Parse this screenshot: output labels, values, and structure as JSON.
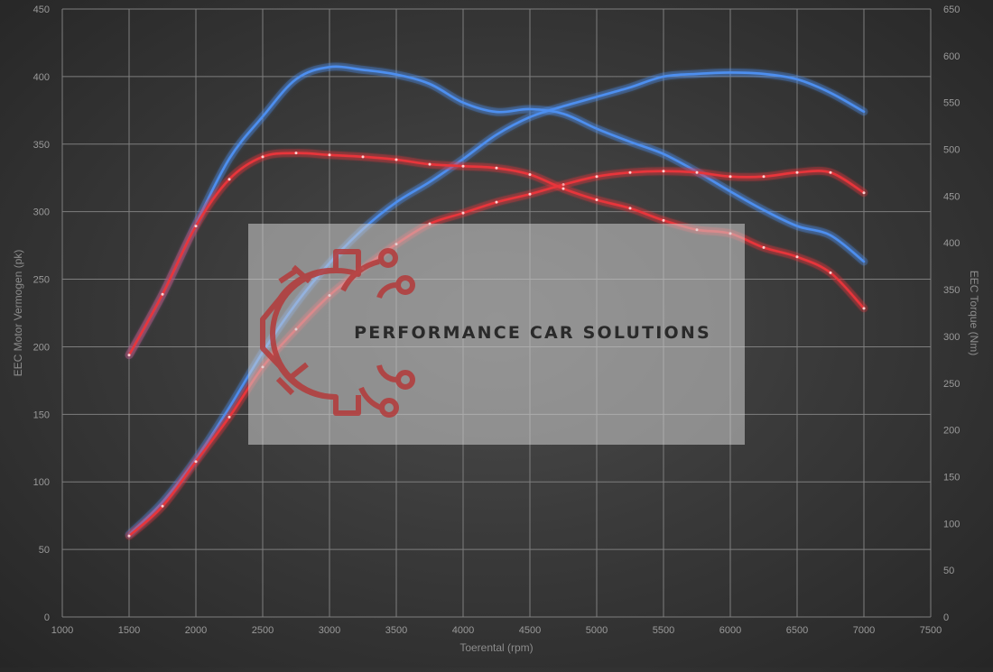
{
  "chart_data": {
    "type": "line",
    "title": "",
    "xlabel": "Toerental (rpm)",
    "ylabel_left": "EEC Motor Vermogen (pk)",
    "ylabel_right": "EEC Torque (Nm)",
    "xlim": [
      1000,
      7500
    ],
    "ylim_left": [
      0,
      450
    ],
    "ylim_right": [
      0,
      650
    ],
    "x_ticks": [
      "1000",
      "1500",
      "2000",
      "2500",
      "3000",
      "3500",
      "4000",
      "4500",
      "5000",
      "5500",
      "6000",
      "6500",
      "7000",
      "7500"
    ],
    "y_left_ticks": [
      "0",
      "50",
      "100",
      "150",
      "200",
      "250",
      "300",
      "350",
      "400",
      "450"
    ],
    "y_right_ticks": [
      "0",
      "50",
      "100",
      "150",
      "200",
      "250",
      "300",
      "350",
      "400",
      "450",
      "500",
      "550",
      "600",
      "650"
    ],
    "grid": true,
    "colors": {
      "tuned": "#4d8ff0",
      "stock": "#e8343a"
    },
    "series": [
      {
        "axis": "left",
        "group": "tuned",
        "x": [
          1500,
          1750,
          2000,
          2250,
          2500,
          2750,
          3000,
          3250,
          3500,
          3750,
          4000,
          4250,
          4500,
          4750,
          5000,
          5250,
          5500,
          5750,
          6000,
          6250,
          6500,
          6750,
          7000
        ],
        "values": [
          61,
          85,
          117,
          155,
          196,
          232,
          262,
          287,
          307,
          322,
          339,
          357,
          370,
          378,
          385,
          392,
          400,
          402,
          403,
          402,
          398,
          388,
          374
        ]
      },
      {
        "axis": "right",
        "group": "tuned",
        "x": [
          1500,
          1750,
          2000,
          2250,
          2500,
          2750,
          3000,
          3250,
          3500,
          3750,
          4000,
          4250,
          4500,
          4750,
          5000,
          5250,
          5500,
          5750,
          6000,
          6250,
          6500,
          6750,
          7000
        ],
        "values": [
          280,
          345,
          420,
          490,
          535,
          575,
          588,
          585,
          580,
          570,
          550,
          540,
          543,
          538,
          522,
          508,
          495,
          476,
          455,
          435,
          418,
          408,
          380
        ]
      },
      {
        "axis": "left",
        "group": "stock",
        "x": [
          1500,
          1750,
          2000,
          2250,
          2500,
          2750,
          3000,
          3250,
          3500,
          3750,
          4000,
          4250,
          4500,
          4750,
          5000,
          5250,
          5500,
          5750,
          6000,
          6250,
          6500,
          6750,
          7000
        ],
        "values": [
          60,
          82,
          115,
          148,
          185,
          213,
          238,
          258,
          276,
          291,
          299,
          307,
          313,
          320,
          326,
          329,
          330,
          329,
          326,
          326,
          329,
          329,
          314
        ]
      },
      {
        "axis": "right",
        "group": "stock",
        "x": [
          1500,
          1750,
          2000,
          2250,
          2500,
          2750,
          3000,
          3250,
          3500,
          3750,
          4000,
          4250,
          4500,
          4750,
          5000,
          5250,
          5500,
          5750,
          6000,
          6250,
          6500,
          6750,
          7000
        ],
        "values": [
          280,
          345,
          418,
          468,
          492,
          496,
          494,
          492,
          489,
          484,
          482,
          480,
          473,
          458,
          446,
          437,
          424,
          414,
          410,
          395,
          385,
          368,
          330
        ]
      }
    ]
  },
  "watermark": {
    "text": "PERFORMANCE CAR SOLUTIONS",
    "logo": "gear-circuit-logo"
  }
}
